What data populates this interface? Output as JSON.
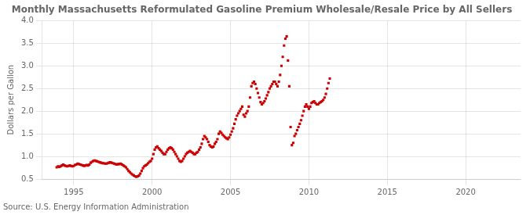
{
  "chart_data": {
    "type": "scatter",
    "title": "Monthly Massachusetts Reformulated Gasoline Premium Wholesale/Resale Price by All Sellers",
    "ylabel": "Dollars per Gallon",
    "annotations": [
      "Source: U.S. Energy Information Administration"
    ],
    "color": "#cc0000",
    "marker": "square",
    "grid": true,
    "xlim": [
      1993.0,
      2023.5
    ],
    "xticks": [
      1995,
      2000,
      2005,
      2010,
      2015,
      2020
    ],
    "ylim": [
      0.5,
      4.0
    ],
    "yticks": [
      0.5,
      {
        "value": 1.0,
        "label": "1.0"
      },
      1.5,
      {
        "value": 2.0,
        "label": "2.0"
      },
      2.5,
      {
        "value": 3.0,
        "label": "3.0"
      },
      3.5,
      {
        "value": 4.0,
        "label": "4.0"
      }
    ],
    "x": [
      1993.917,
      1994.0,
      1994.083,
      1994.167,
      1994.25,
      1994.333,
      1994.417,
      1994.5,
      1994.583,
      1994.667,
      1994.75,
      1994.833,
      1994.917,
      1995.0,
      1995.083,
      1995.167,
      1995.25,
      1995.333,
      1995.417,
      1995.5,
      1995.583,
      1995.667,
      1995.75,
      1995.833,
      1995.917,
      1996.0,
      1996.083,
      1996.167,
      1996.25,
      1996.333,
      1996.417,
      1996.5,
      1996.583,
      1996.667,
      1996.75,
      1996.833,
      1996.917,
      1997.0,
      1997.083,
      1997.167,
      1997.25,
      1997.333,
      1997.417,
      1997.5,
      1997.583,
      1997.667,
      1997.75,
      1997.833,
      1997.917,
      1998.0,
      1998.083,
      1998.167,
      1998.25,
      1998.333,
      1998.417,
      1998.5,
      1998.583,
      1998.667,
      1998.75,
      1998.833,
      1998.917,
      1999.0,
      1999.083,
      1999.167,
      1999.25,
      1999.333,
      1999.417,
      1999.5,
      1999.583,
      1999.667,
      1999.75,
      1999.833,
      1999.917,
      2000.0,
      2000.083,
      2000.167,
      2000.25,
      2000.333,
      2000.417,
      2000.5,
      2000.583,
      2000.667,
      2000.75,
      2000.833,
      2000.917,
      2001.0,
      2001.083,
      2001.167,
      2001.25,
      2001.333,
      2001.417,
      2001.5,
      2001.583,
      2001.667,
      2001.75,
      2001.833,
      2001.917,
      2002.0,
      2002.083,
      2002.167,
      2002.25,
      2002.333,
      2002.417,
      2002.5,
      2002.583,
      2002.667,
      2002.75,
      2002.833,
      2002.917,
      2003.0,
      2003.083,
      2003.167,
      2003.25,
      2003.333,
      2003.417,
      2003.5,
      2003.583,
      2003.667,
      2003.75,
      2003.833,
      2003.917,
      2004.0,
      2004.083,
      2004.167,
      2004.25,
      2004.333,
      2004.417,
      2004.5,
      2004.583,
      2004.667,
      2004.75,
      2004.833,
      2004.917,
      2005.0,
      2005.083,
      2005.167,
      2005.25,
      2005.333,
      2005.417,
      2005.5,
      2005.583,
      2005.667,
      2005.75,
      2005.833,
      2005.917,
      2006.0,
      2006.083,
      2006.167,
      2006.25,
      2006.333,
      2006.417,
      2006.5,
      2006.583,
      2006.667,
      2006.75,
      2006.833,
      2006.917,
      2007.0,
      2007.083,
      2007.167,
      2007.25,
      2007.333,
      2007.417,
      2007.5,
      2007.583,
      2007.667,
      2007.75,
      2007.833,
      2007.917,
      2008.0,
      2008.083,
      2008.167,
      2008.25,
      2008.333,
      2008.417,
      2008.5,
      2008.583,
      2008.667,
      2008.75,
      2008.833,
      2008.917,
      2009.0,
      2009.083,
      2009.167,
      2009.25,
      2009.333,
      2009.417,
      2009.5,
      2009.583,
      2009.667,
      2009.75,
      2009.833,
      2009.917,
      2010.0,
      2010.083,
      2010.167,
      2010.25,
      2010.333,
      2010.417,
      2010.5,
      2010.583,
      2010.667,
      2010.75,
      2010.833,
      2010.917,
      2011.0,
      2011.083,
      2011.167,
      2011.25,
      2011.333
    ],
    "values": [
      0.76,
      0.78,
      0.77,
      0.78,
      0.8,
      0.82,
      0.8,
      0.79,
      0.78,
      0.79,
      0.8,
      0.79,
      0.78,
      0.79,
      0.81,
      0.82,
      0.84,
      0.83,
      0.82,
      0.81,
      0.8,
      0.79,
      0.8,
      0.81,
      0.8,
      0.82,
      0.86,
      0.88,
      0.9,
      0.91,
      0.9,
      0.89,
      0.88,
      0.87,
      0.86,
      0.85,
      0.85,
      0.84,
      0.84,
      0.85,
      0.86,
      0.87,
      0.86,
      0.85,
      0.84,
      0.83,
      0.82,
      0.83,
      0.83,
      0.84,
      0.82,
      0.8,
      0.78,
      0.76,
      0.72,
      0.68,
      0.65,
      0.62,
      0.6,
      0.58,
      0.56,
      0.55,
      0.56,
      0.58,
      0.62,
      0.68,
      0.74,
      0.78,
      0.8,
      0.82,
      0.85,
      0.88,
      0.9,
      0.95,
      1.05,
      1.15,
      1.2,
      1.22,
      1.18,
      1.15,
      1.12,
      1.08,
      1.05,
      1.05,
      1.1,
      1.15,
      1.18,
      1.2,
      1.18,
      1.15,
      1.1,
      1.05,
      1.0,
      0.95,
      0.9,
      0.88,
      0.9,
      0.95,
      1.0,
      1.05,
      1.08,
      1.1,
      1.12,
      1.1,
      1.08,
      1.05,
      1.05,
      1.08,
      1.1,
      1.15,
      1.2,
      1.28,
      1.38,
      1.45,
      1.42,
      1.38,
      1.32,
      1.25,
      1.22,
      1.2,
      1.22,
      1.28,
      1.32,
      1.38,
      1.5,
      1.55,
      1.52,
      1.48,
      1.45,
      1.42,
      1.4,
      1.38,
      1.42,
      1.48,
      1.55,
      1.62,
      1.72,
      1.82,
      1.9,
      1.95,
      2.0,
      2.05,
      2.1,
      1.92,
      1.88,
      1.95,
      2.0,
      2.1,
      2.3,
      2.55,
      2.62,
      2.65,
      2.6,
      2.5,
      2.4,
      2.3,
      2.2,
      2.15,
      2.18,
      2.22,
      2.28,
      2.35,
      2.42,
      2.5,
      2.55,
      2.6,
      2.65,
      2.65,
      2.6,
      2.55,
      2.65,
      2.8,
      3.0,
      3.2,
      3.45,
      3.6,
      3.65,
      3.12,
      2.55,
      1.65,
      1.25,
      1.3,
      1.45,
      1.5,
      1.58,
      1.65,
      1.72,
      1.8,
      1.9,
      2.0,
      2.1,
      2.15,
      2.1,
      2.05,
      2.1,
      2.18,
      2.2,
      2.22,
      2.18,
      2.15,
      2.15,
      2.18,
      2.2,
      2.22,
      2.25,
      2.3,
      2.38,
      2.5,
      2.62,
      2.72
    ]
  }
}
